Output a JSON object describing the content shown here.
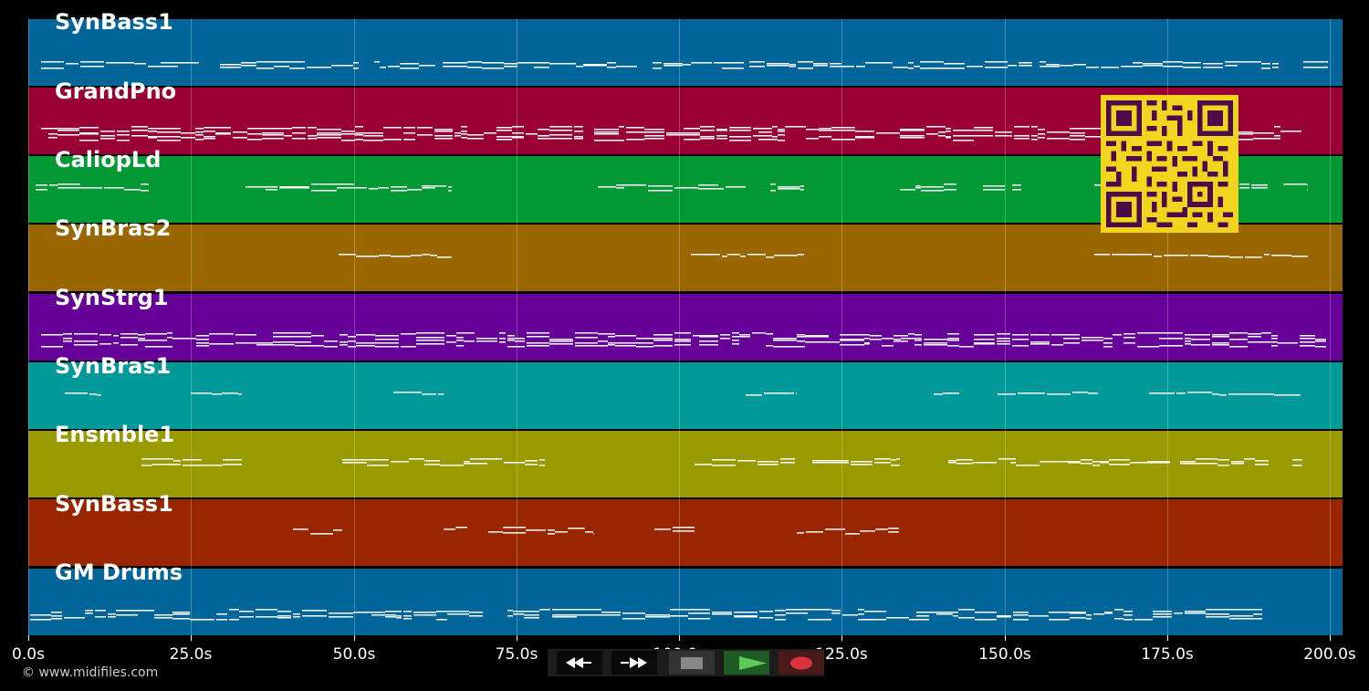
{
  "tracks": [
    {
      "name": "SynBass1",
      "color": "#006699"
    },
    {
      "name": "GrandPno",
      "color": "#990033"
    },
    {
      "name": "CaliopLd",
      "color": "#009933"
    },
    {
      "name": "SynBras2",
      "color": "#996600"
    },
    {
      "name": "SynStrg1",
      "color": "#660099"
    },
    {
      "name": "SynBras1",
      "color": "#009999"
    },
    {
      "name": "Ensmble1",
      "color": "#999900"
    },
    {
      "name": "SynBass1",
      "color": "#992600"
    },
    {
      "name": "GM Drums",
      "color": "#006699"
    }
  ],
  "axis": {
    "ticks": [
      "0.0s",
      "25.0s",
      "50.0s",
      "75.0s",
      "100.0s",
      "125.0s",
      "150.0s",
      "175.0s",
      "200.0s"
    ],
    "range": [
      0,
      200
    ],
    "unit": "s"
  },
  "copyright": "© www.midifiles.com",
  "controls": {
    "rewind": "rewind-icon",
    "fast_forward": "fast-forward-icon",
    "stop": "stop-icon",
    "play": "play-icon",
    "record": "record-icon"
  },
  "qr_code": "qr-code-icon"
}
